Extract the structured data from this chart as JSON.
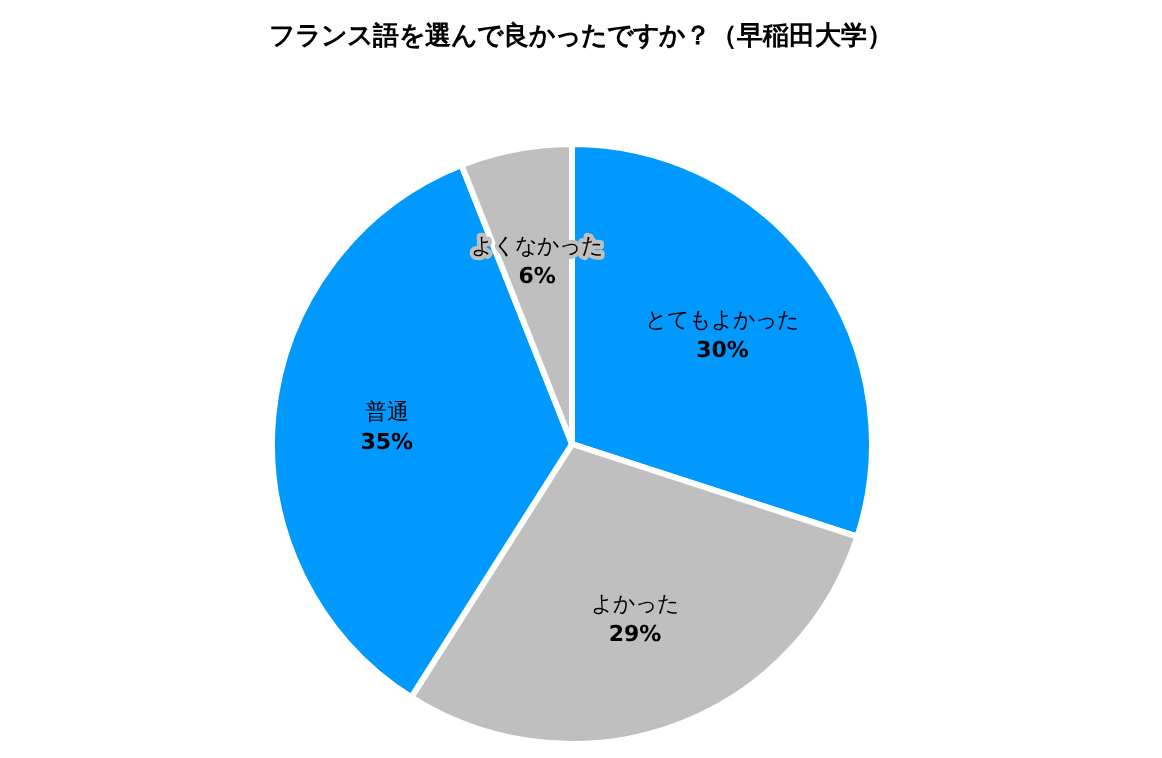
{
  "chart_data": {
    "type": "pie",
    "title": "フランス語を選んで良かったですか？（早稲田大学）",
    "categories": [
      "とてもよかった",
      "よかった",
      "普通",
      "よくなかった"
    ],
    "values": [
      30,
      29,
      35,
      6
    ],
    "colors": [
      "#0099ff",
      "#bfbfbf",
      "#0099ff",
      "#bfbfbf"
    ],
    "value_labels": [
      "30%",
      "29%",
      "35%",
      "6%"
    ],
    "legend": false
  }
}
